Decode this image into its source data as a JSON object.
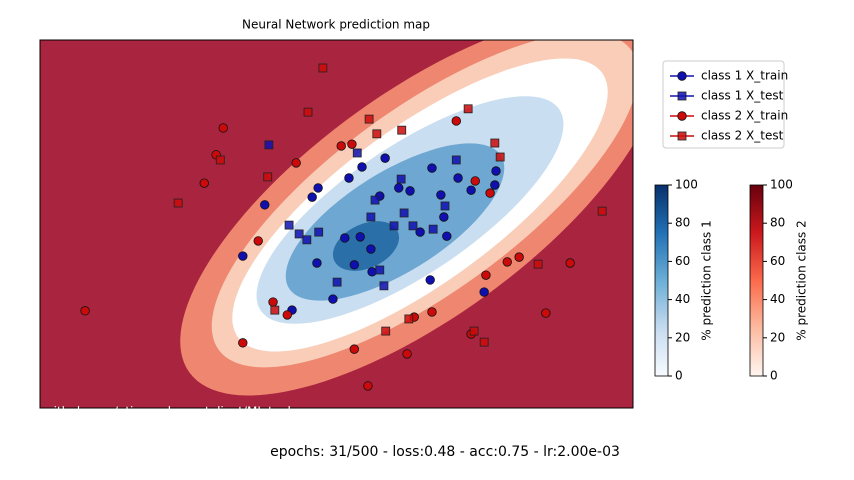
{
  "chart_data": {
    "type": "scatter",
    "title": "Neural Network prediction map",
    "xlim": [
      0,
      100
    ],
    "ylim": [
      0,
      100
    ],
    "series": [
      {
        "name": "class 1 X_train",
        "color": "#1010b0",
        "marker": "circle",
        "x": [
          34.2,
          37.9,
          46.9,
          45.9,
          52.1,
          54.3,
          58.2,
          57.3,
          60.5,
          62.4,
          66.1,
          67.6,
          68.1,
          64.1,
          68.6,
          70.5,
          72.7,
          76.7,
          76.9,
          51.4,
          54.0,
          55.8,
          56.0,
          53.0,
          46.7,
          49.4,
          42.5,
          74.9,
          65.8
        ],
        "y": [
          41.3,
          55.2,
          59.8,
          57.3,
          62.5,
          65.5,
          67.9,
          57.6,
          59.8,
          59.0,
          65.2,
          57.9,
          51.9,
          47.8,
          46.7,
          62.5,
          59.2,
          60.6,
          64.4,
          46.2,
          46.5,
          43.2,
          37.0,
          38.9,
          39.4,
          29.6,
          26.6,
          31.5,
          34.8
        ]
      },
      {
        "name": "class 1 X_test",
        "color": "#1010b0",
        "marker": "square",
        "x": [
          38.6,
          70.2,
          60.9,
          55.8,
          59.7,
          62.9,
          68.3,
          56.5,
          53.5,
          43.7,
          42.0,
          47.0,
          57.3,
          58.0,
          50.1,
          45.0,
          61.4,
          66.3
        ],
        "y": [
          71.5,
          67.4,
          62.2,
          51.9,
          49.5,
          49.5,
          54.9,
          56.5,
          69.3,
          47.3,
          49.7,
          47.8,
          37.5,
          33.2,
          34.2,
          45.7,
          53.0,
          48.6
        ]
      },
      {
        "name": "class 2 X_train",
        "color": "#cc0a0a",
        "marker": "circle",
        "x": [
          7.6,
          34.2,
          36.8,
          39.3,
          41.7,
          55.3,
          53.0,
          61.9,
          63.1,
          66.1,
          72.7,
          75.2,
          78.8,
          80.8,
          85.3,
          89.4,
          75.9,
          73.4,
          70.2,
          43.2,
          50.8,
          52.6,
          30.9,
          27.7,
          29.7
        ],
        "y": [
          26.4,
          17.7,
          45.4,
          28.8,
          25.3,
          6.0,
          16.0,
          14.7,
          24.7,
          26.1,
          20.1,
          36.1,
          39.7,
          41.0,
          25.8,
          39.4,
          58.4,
          61.7,
          78.0,
          66.6,
          71.2,
          71.7,
          76.1,
          61.1,
          68.8
        ]
      },
      {
        "name": "class 2 X_test",
        "color": "#cc0a0a",
        "marker": "square",
        "x": [
          47.7,
          45.2,
          30.4,
          23.3,
          38.4,
          55.5,
          56.8,
          61.0,
          72.2,
          76.7,
          77.6,
          94.8,
          84.0,
          74.9,
          58.3,
          39.6,
          62.2,
          73.2
        ],
        "y": [
          92.4,
          80.4,
          67.4,
          55.7,
          62.8,
          78.5,
          74.5,
          75.5,
          81.3,
          72.0,
          68.2,
          53.5,
          39.1,
          17.9,
          20.9,
          26.6,
          24.2,
          20.9
        ]
      }
    ],
    "colorbars": [
      {
        "label": "% prediction class 1",
        "lim": [
          0,
          100
        ],
        "ticks": [
          0,
          20,
          40,
          60,
          80,
          100
        ],
        "colors": [
          "#f7fbff",
          "#c6dbef",
          "#6baed6",
          "#2171b5",
          "#08306b"
        ]
      },
      {
        "label": "% prediction class 2",
        "lim": [
          0,
          100
        ],
        "ticks": [
          0,
          20,
          40,
          60,
          80,
          100
        ],
        "colors": [
          "#fff5f0",
          "#fcbba1",
          "#fb6a4a",
          "#cb181d",
          "#67000d"
        ]
      }
    ],
    "watermark": "github.com/etiennedemontalivet/ML-tools",
    "status": "epochs: 31/500 - loss:0.48 - acc:0.75 - lr:2.00e-03"
  }
}
